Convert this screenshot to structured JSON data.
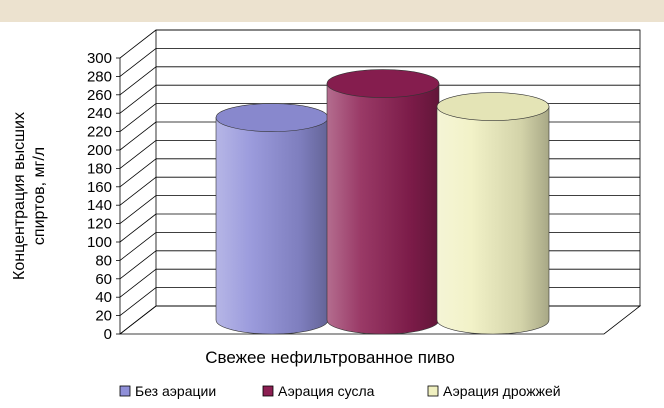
{
  "chart_data": {
    "type": "bar",
    "style": "3d-cylinder",
    "categories": [
      "Свежее нефильтрованное пиво"
    ],
    "series": [
      {
        "name": "Без аэрации",
        "values": [
          220
        ],
        "color": "#8f8fd8"
      },
      {
        "name": "Аэрация сусла",
        "values": [
          257
        ],
        "color": "#8c1f52"
      },
      {
        "name": "Аэрация дрожжей",
        "values": [
          232
        ],
        "color": "#f0f0c0"
      }
    ],
    "title": "",
    "xlabel": "Свежее нефильтрованное пиво",
    "ylabel": "Концентрация высших спиртов, мг/л",
    "ylim": [
      0,
      300
    ],
    "yticks": [
      0,
      20,
      40,
      60,
      80,
      100,
      120,
      140,
      160,
      180,
      200,
      220,
      240,
      260,
      280,
      300
    ],
    "grid": true,
    "legend": "bottom"
  },
  "ui": {
    "band_color": "#ece2cf"
  }
}
